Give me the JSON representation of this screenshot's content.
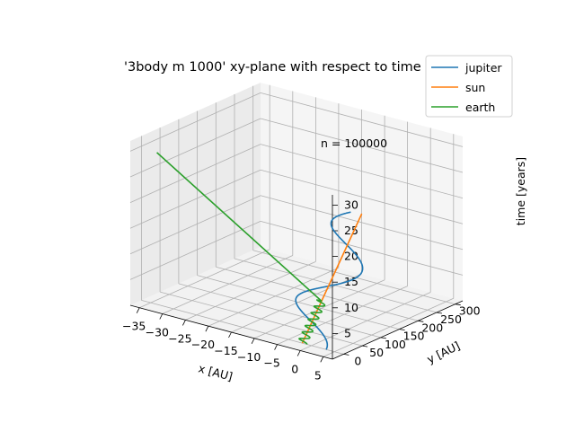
{
  "chart_data": {
    "type": "line",
    "projection": "3d",
    "title": "'3body m 1000' xy-plane with respect to time",
    "annotation": "n = 100000",
    "xlabel": "x [AU]",
    "ylabel": "y [AU]",
    "zlabel": "time [years]",
    "xlim": [
      -37,
      7
    ],
    "ylim": [
      -30,
      320
    ],
    "zlim": [
      0,
      32
    ],
    "x_ticks": [
      -35,
      -30,
      -25,
      -20,
      -15,
      -10,
      -5,
      0,
      5
    ],
    "y_ticks": [
      0,
      50,
      100,
      150,
      200,
      250,
      300
    ],
    "z_ticks": [
      5,
      10,
      15,
      20,
      25,
      30
    ],
    "x_tick_labels": [
      "−35",
      "−30",
      "−25",
      "−20",
      "−15",
      "−10",
      "−5",
      "0",
      "5"
    ],
    "y_tick_labels": [
      "0",
      "50",
      "100",
      "150",
      "200",
      "250",
      "300"
    ],
    "z_tick_labels": [
      "5",
      "10",
      "15",
      "20",
      "25",
      "30"
    ],
    "grid": true,
    "legend_position": "upper-right",
    "series": [
      {
        "name": "jupiter",
        "color": "#1f77b4",
        "model": "orbit",
        "center": [
          -2,
          0
        ],
        "radius": 5.2,
        "period_years": 11.86,
        "t_max": 20,
        "drift_per_year": [
          0,
          8.0
        ]
      },
      {
        "name": "sun",
        "color": "#ff7f0e",
        "model": "orbit",
        "center": [
          -2,
          0
        ],
        "radius": 0.005,
        "period_years": 11.86,
        "t_max": 20,
        "drift_per_year": [
          0,
          8.0
        ]
      },
      {
        "name": "earth",
        "color": "#2ca02c",
        "model": "orbit-then-escape",
        "center": [
          -2,
          0
        ],
        "radius": 1.0,
        "period_years": 1.0,
        "t_max": 30,
        "escape_year": 6.5,
        "drift_per_year": [
          0,
          8.0
        ]
      }
    ]
  }
}
